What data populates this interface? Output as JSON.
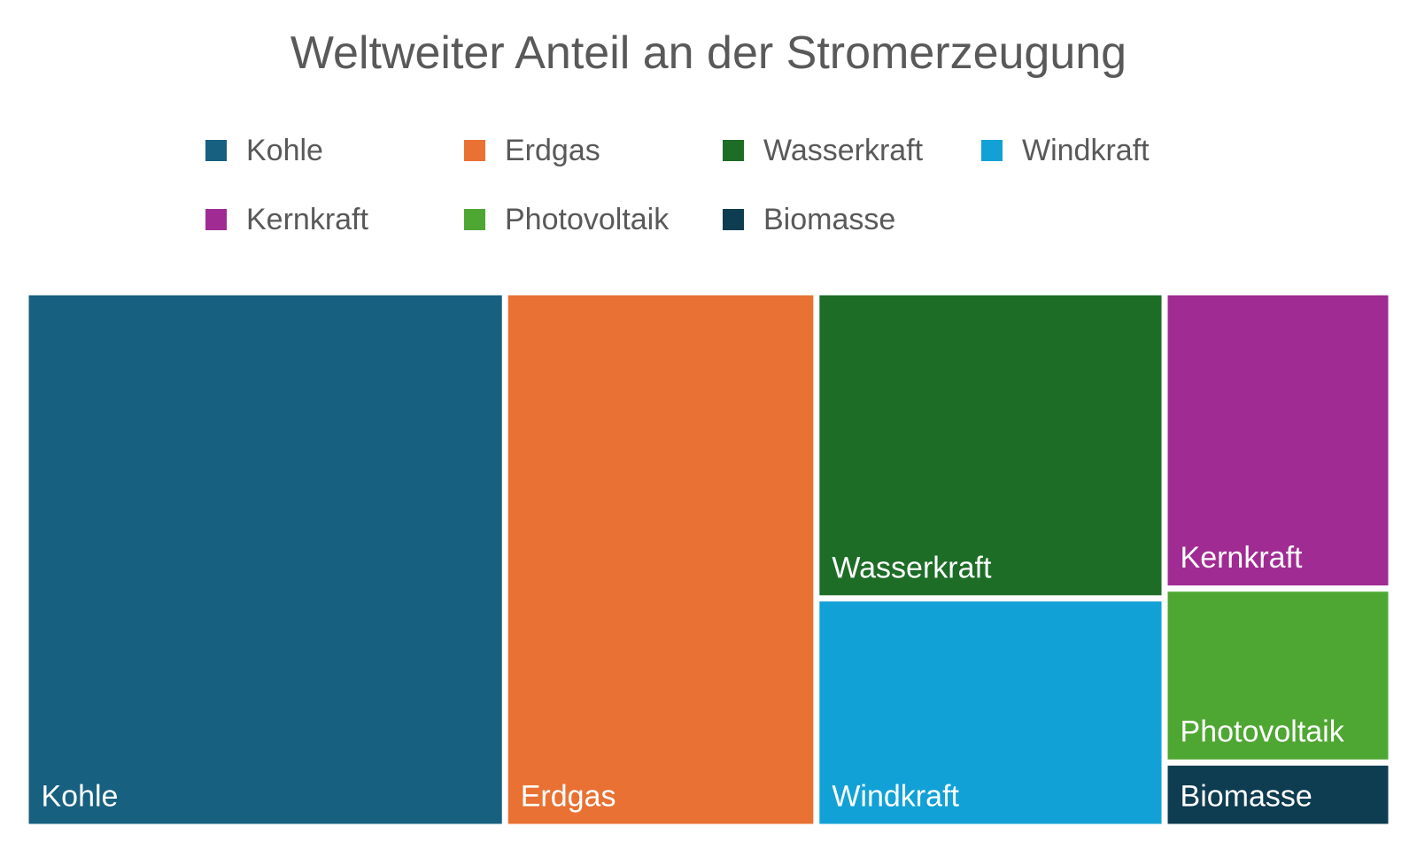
{
  "chart_data": {
    "type": "treemap",
    "title": "Weltweiter Anteil an der Stromerzeugung",
    "legend_position": "top",
    "legend": [
      {
        "label": "Kohle",
        "color": "#17607F"
      },
      {
        "label": "Erdgas",
        "color": "#E97133"
      },
      {
        "label": "Wasserkraft",
        "color": "#1D6D27"
      },
      {
        "label": "Windkraft",
        "color": "#12A1D6"
      },
      {
        "label": "Kernkraft",
        "color": "#A02B93"
      },
      {
        "label": "Photovoltaik",
        "color": "#4FA733"
      },
      {
        "label": "Biomasse",
        "color": "#0E3C51"
      }
    ],
    "series": [
      {
        "name": "Kohle",
        "value": 35.1,
        "color": "#17607F"
      },
      {
        "name": "Erdgas",
        "value": 22.8,
        "color": "#E97133"
      },
      {
        "name": "Wasserkraft",
        "value": 14.6,
        "color": "#1D6D27"
      },
      {
        "name": "Windkraft",
        "value": 10.9,
        "color": "#12A1D6"
      },
      {
        "name": "Kernkraft",
        "value": 9.2,
        "color": "#A02B93"
      },
      {
        "name": "Photovoltaik",
        "value": 5.4,
        "color": "#4FA733"
      },
      {
        "name": "Biomasse",
        "value": 2.0,
        "color": "#0E3C51"
      }
    ]
  }
}
